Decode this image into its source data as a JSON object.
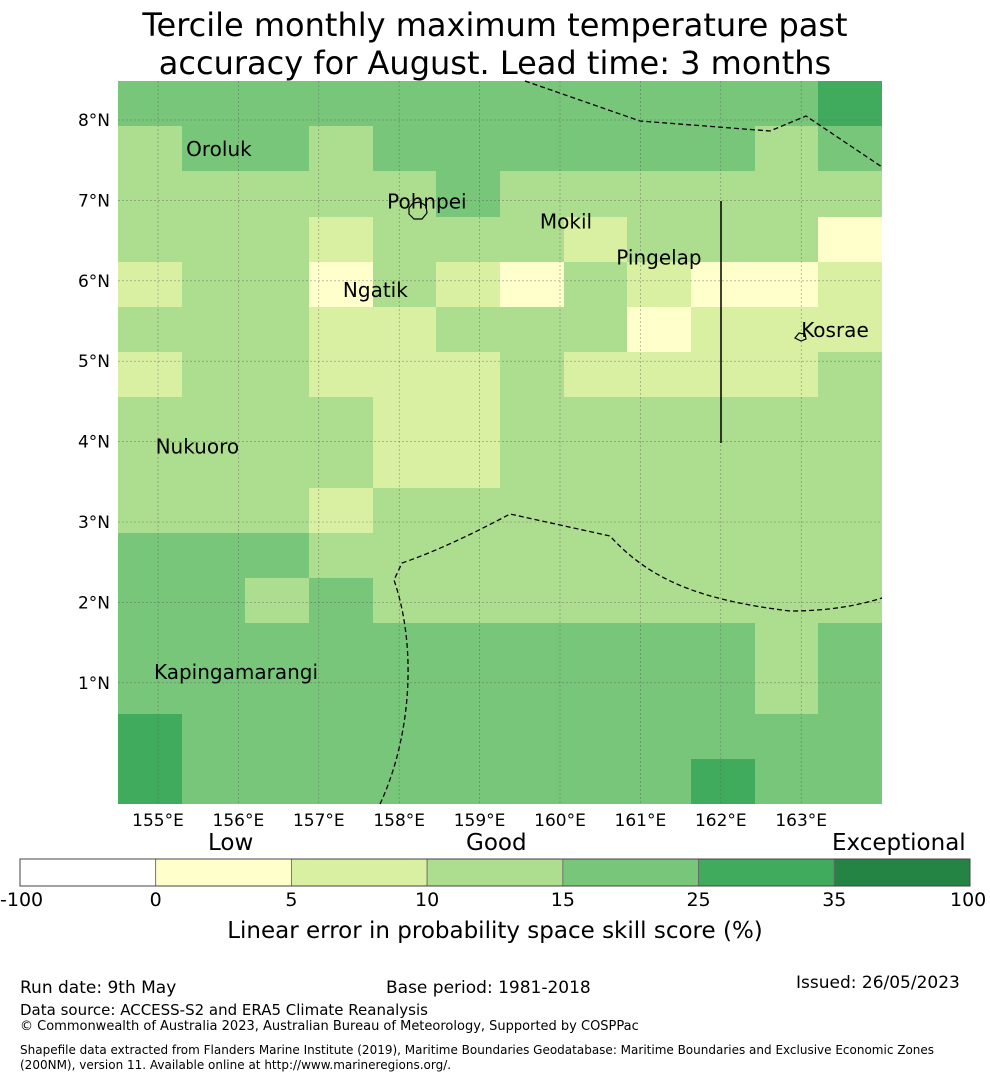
{
  "title": {
    "line1": "Tercile monthly maximum temperature past",
    "line2": "accuracy for August. Lead time: 3 months"
  },
  "map": {
    "lat_labels": [
      "8°N",
      "7°N",
      "6°N",
      "5°N",
      "4°N",
      "3°N",
      "2°N",
      "1°N"
    ],
    "lon_labels": [
      "155°E",
      "156°E",
      "157°E",
      "158°E",
      "159°E",
      "160°E",
      "161°E",
      "162°E",
      "163°E"
    ],
    "islands": [
      {
        "name": "Oroluk",
        "lon": 155.35,
        "lat": 7.55
      },
      {
        "name": "Pohnpei",
        "lon": 157.85,
        "lat": 6.9
      },
      {
        "name": "Mokil",
        "lon": 159.75,
        "lat": 6.65
      },
      {
        "name": "Pingelap",
        "lon": 160.7,
        "lat": 6.2
      },
      {
        "name": "Ngatik",
        "lon": 157.3,
        "lat": 5.8
      },
      {
        "name": "Kosrae",
        "lon": 163.0,
        "lat": 5.3
      },
      {
        "name": "Nukuoro",
        "lon": 154.97,
        "lat": 3.85
      },
      {
        "name": "Kapingamarangi",
        "lon": 154.95,
        "lat": 1.05
      }
    ],
    "grid_classes": [
      [
        4,
        4,
        4,
        4,
        4,
        4,
        4,
        4,
        4,
        4,
        4,
        5
      ],
      [
        3,
        4,
        4,
        3,
        4,
        4,
        4,
        4,
        4,
        4,
        3,
        4
      ],
      [
        3,
        3,
        3,
        3,
        3,
        4,
        3,
        3,
        3,
        3,
        3,
        3
      ],
      [
        3,
        3,
        3,
        2,
        3,
        3,
        3,
        2,
        3,
        3,
        3,
        1
      ],
      [
        2,
        3,
        3,
        1,
        3,
        2,
        1,
        3,
        2,
        1,
        1,
        2
      ],
      [
        3,
        3,
        3,
        2,
        2,
        3,
        3,
        3,
        1,
        2,
        2,
        2
      ],
      [
        2,
        3,
        3,
        2,
        2,
        2,
        3,
        2,
        2,
        2,
        2,
        3
      ],
      [
        3,
        3,
        3,
        3,
        2,
        2,
        3,
        3,
        3,
        3,
        3,
        3
      ],
      [
        3,
        3,
        3,
        3,
        2,
        2,
        3,
        3,
        3,
        3,
        3,
        3
      ],
      [
        3,
        3,
        3,
        2,
        3,
        3,
        3,
        3,
        3,
        3,
        3,
        3
      ],
      [
        4,
        4,
        4,
        3,
        3,
        3,
        3,
        3,
        3,
        3,
        3,
        3
      ],
      [
        4,
        4,
        3,
        4,
        3,
        3,
        3,
        3,
        3,
        3,
        3,
        3
      ],
      [
        4,
        4,
        4,
        4,
        4,
        4,
        4,
        4,
        4,
        4,
        3,
        4
      ],
      [
        4,
        4,
        4,
        4,
        4,
        4,
        4,
        4,
        4,
        4,
        3,
        4
      ],
      [
        5,
        4,
        4,
        4,
        4,
        4,
        4,
        4,
        4,
        4,
        4,
        4
      ],
      [
        5,
        4,
        4,
        4,
        4,
        4,
        4,
        4,
        4,
        5,
        4,
        4
      ]
    ]
  },
  "colorbar": {
    "categories": [
      "Low",
      "Good",
      "Exceptional"
    ],
    "ticks": [
      "-100",
      "0",
      "5",
      "10",
      "15",
      "25",
      "35",
      "100"
    ],
    "colors": [
      "#ffffff",
      "#ffffcc",
      "#d9f0a3",
      "#addd8e",
      "#78c679",
      "#41ab5d",
      "#238443"
    ],
    "label": "Linear error in probability space skill score (%)"
  },
  "footer": {
    "run_date": "Run date: 9th May",
    "base_period": "Base period: 1981-2018",
    "issued": "Issued: 26/05/2023",
    "data_source": "Data source: ACCESS-S2 and ERA5 Climate Reanalysis",
    "copyright": "© Commonwealth of Australia 2023, Australian Bureau of Meteorology, Supported by COSPPac",
    "shapefile_line1": "Shapefile data extracted from Flanders Marine Institute (2019), Maritime Boundaries Geodatabase: Maritime Boundaries and Exclusive Economic Zones",
    "shapefile_line2": "(200NM), version 11. Available online at http://www.marineregions.org/."
  }
}
